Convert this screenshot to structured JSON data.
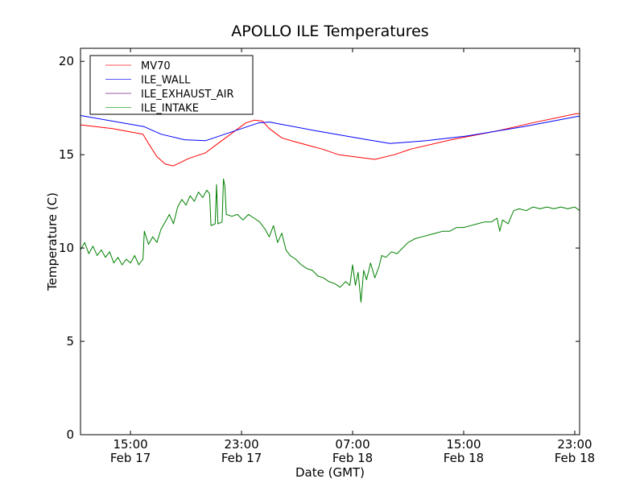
{
  "chart_data": {
    "type": "line",
    "title": "APOLLO ILE Temperatures",
    "xlabel": "Date (GMT)",
    "ylabel": "Temperature (C)",
    "x_units": "hours since Feb 17 00:00 GMT",
    "xlim": [
      11.4,
      47.35
    ],
    "ylim": [
      0,
      20.7
    ],
    "yticks": [
      0,
      5,
      10,
      15,
      20
    ],
    "xticks": [
      {
        "x": 15,
        "time": "15:00",
        "date": "Feb 17"
      },
      {
        "x": 23,
        "time": "23:00",
        "date": "Feb 17"
      },
      {
        "x": 31,
        "time": "07:00",
        "date": "Feb 18"
      },
      {
        "x": 39,
        "time": "15:00",
        "date": "Feb 18"
      },
      {
        "x": 47,
        "time": "23:00",
        "date": "Feb 18"
      }
    ],
    "legend_position": "top-left",
    "series": [
      {
        "name": "MV70",
        "color": "#ff0000",
        "legend_color": "#ff5555",
        "points": [
          [
            11.4,
            16.6
          ],
          [
            13.7,
            16.4
          ],
          [
            15.9,
            16.1
          ],
          [
            16.3,
            15.6
          ],
          [
            16.9,
            14.9
          ],
          [
            17.5,
            14.5
          ],
          [
            18.1,
            14.4
          ],
          [
            19.2,
            14.8
          ],
          [
            20.4,
            15.1
          ],
          [
            21.3,
            15.6
          ],
          [
            22.4,
            16.2
          ],
          [
            23.3,
            16.7
          ],
          [
            23.9,
            16.85
          ],
          [
            24.5,
            16.8
          ],
          [
            25.0,
            16.4
          ],
          [
            25.9,
            15.9
          ],
          [
            26.8,
            15.7
          ],
          [
            28.8,
            15.3
          ],
          [
            30.0,
            15.0
          ],
          [
            32.6,
            14.75
          ],
          [
            34.0,
            15.0
          ],
          [
            35.2,
            15.3
          ],
          [
            38.1,
            15.8
          ],
          [
            41.6,
            16.3
          ],
          [
            43.9,
            16.7
          ],
          [
            47.1,
            17.2
          ],
          [
            47.35,
            17.2
          ]
        ]
      },
      {
        "name": "ILE_WALL",
        "color": "#0000ff",
        "legend_color": "#5555ff",
        "points": [
          [
            11.4,
            17.1
          ],
          [
            16.0,
            16.5
          ],
          [
            17.2,
            16.1
          ],
          [
            18.9,
            15.8
          ],
          [
            20.4,
            15.75
          ],
          [
            21.8,
            16.1
          ],
          [
            24.2,
            16.7
          ],
          [
            25.0,
            16.75
          ],
          [
            28.2,
            16.3
          ],
          [
            31.7,
            15.85
          ],
          [
            33.7,
            15.6
          ],
          [
            36.3,
            15.75
          ],
          [
            39.2,
            16.0
          ],
          [
            43.3,
            16.5
          ],
          [
            47.2,
            17.05
          ],
          [
            47.35,
            17.07
          ]
        ]
      },
      {
        "name": "ILE_EXHAUST_AIR",
        "color": "#800080",
        "legend_color": "#9a5aa0",
        "points": []
      },
      {
        "name": "ILE_INTAKE",
        "color": "#008000",
        "legend_color": "#66bb66",
        "points": [
          [
            11.4,
            9.9
          ],
          [
            11.7,
            10.3
          ],
          [
            12.0,
            9.7
          ],
          [
            12.3,
            10.1
          ],
          [
            12.6,
            9.6
          ],
          [
            12.9,
            9.9
          ],
          [
            13.2,
            9.5
          ],
          [
            13.5,
            9.8
          ],
          [
            13.8,
            9.2
          ],
          [
            14.1,
            9.5
          ],
          [
            14.4,
            9.1
          ],
          [
            14.7,
            9.4
          ],
          [
            15.0,
            9.2
          ],
          [
            15.3,
            9.6
          ],
          [
            15.6,
            9.1
          ],
          [
            15.9,
            9.4
          ],
          [
            16.0,
            10.9
          ],
          [
            16.3,
            10.2
          ],
          [
            16.6,
            10.6
          ],
          [
            16.9,
            10.3
          ],
          [
            17.2,
            11.0
          ],
          [
            17.5,
            11.4
          ],
          [
            17.8,
            11.8
          ],
          [
            18.1,
            11.3
          ],
          [
            18.4,
            12.2
          ],
          [
            18.7,
            12.6
          ],
          [
            19.0,
            12.3
          ],
          [
            19.3,
            12.8
          ],
          [
            19.6,
            12.5
          ],
          [
            19.9,
            13.0
          ],
          [
            20.2,
            12.7
          ],
          [
            20.5,
            13.1
          ],
          [
            20.7,
            12.9
          ],
          [
            20.8,
            11.2
          ],
          [
            21.1,
            11.3
          ],
          [
            21.2,
            13.4
          ],
          [
            21.3,
            11.3
          ],
          [
            21.6,
            11.4
          ],
          [
            21.7,
            13.7
          ],
          [
            21.8,
            13.3
          ],
          [
            21.9,
            11.8
          ],
          [
            22.3,
            11.7
          ],
          [
            22.7,
            11.8
          ],
          [
            23.1,
            11.5
          ],
          [
            23.5,
            11.8
          ],
          [
            23.9,
            11.6
          ],
          [
            24.3,
            11.4
          ],
          [
            24.7,
            11.0
          ],
          [
            25.0,
            10.6
          ],
          [
            25.3,
            11.2
          ],
          [
            25.6,
            10.3
          ],
          [
            25.9,
            10.8
          ],
          [
            26.2,
            9.9
          ],
          [
            26.5,
            9.6
          ],
          [
            26.9,
            9.4
          ],
          [
            27.3,
            9.1
          ],
          [
            27.7,
            8.9
          ],
          [
            28.1,
            8.8
          ],
          [
            28.5,
            8.5
          ],
          [
            28.9,
            8.4
          ],
          [
            29.3,
            8.2
          ],
          [
            29.7,
            8.1
          ],
          [
            30.1,
            7.9
          ],
          [
            30.5,
            8.2
          ],
          [
            30.8,
            8.0
          ],
          [
            31.0,
            9.1
          ],
          [
            31.2,
            8.0
          ],
          [
            31.4,
            8.7
          ],
          [
            31.6,
            7.1
          ],
          [
            31.8,
            8.8
          ],
          [
            32.0,
            8.3
          ],
          [
            32.3,
            9.2
          ],
          [
            32.6,
            8.4
          ],
          [
            32.9,
            9.0
          ],
          [
            33.1,
            9.6
          ],
          [
            33.4,
            9.5
          ],
          [
            33.8,
            9.8
          ],
          [
            34.2,
            9.7
          ],
          [
            34.6,
            10.0
          ],
          [
            35.0,
            10.3
          ],
          [
            35.5,
            10.5
          ],
          [
            36.0,
            10.6
          ],
          [
            36.5,
            10.7
          ],
          [
            37.0,
            10.8
          ],
          [
            37.5,
            10.9
          ],
          [
            38.0,
            10.9
          ],
          [
            38.5,
            11.1
          ],
          [
            39.0,
            11.1
          ],
          [
            39.5,
            11.2
          ],
          [
            40.0,
            11.3
          ],
          [
            40.5,
            11.4
          ],
          [
            41.0,
            11.4
          ],
          [
            41.4,
            11.6
          ],
          [
            41.6,
            10.9
          ],
          [
            41.8,
            11.5
          ],
          [
            42.2,
            11.3
          ],
          [
            42.6,
            12.0
          ],
          [
            43.0,
            12.1
          ],
          [
            43.5,
            12.0
          ],
          [
            44.0,
            12.2
          ],
          [
            44.5,
            12.1
          ],
          [
            45.0,
            12.2
          ],
          [
            45.5,
            12.1
          ],
          [
            46.0,
            12.2
          ],
          [
            46.5,
            12.1
          ],
          [
            47.0,
            12.2
          ],
          [
            47.35,
            12.0
          ]
        ]
      }
    ]
  }
}
